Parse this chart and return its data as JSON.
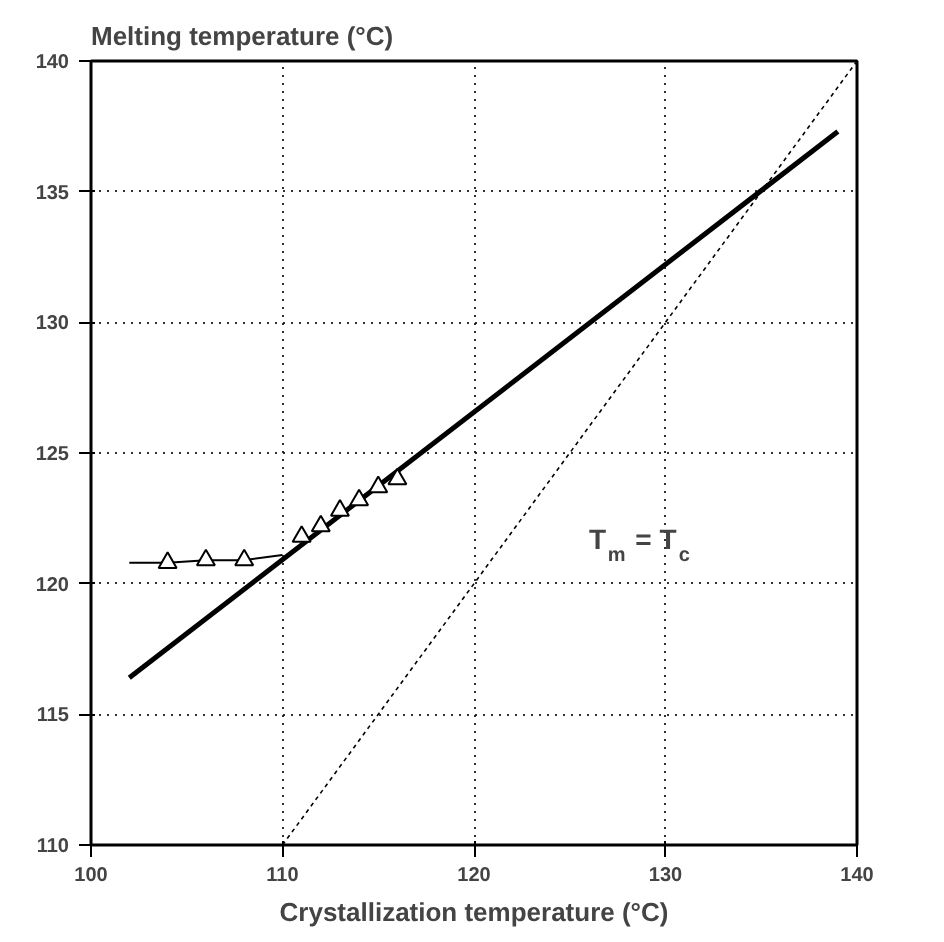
{
  "chart_data": {
    "type": "line",
    "ylabel": "Melting temperature (°C)",
    "xlabel": "Crystallization temperature (°C)",
    "xlim": [
      100,
      140
    ],
    "ylim": [
      110,
      140
    ],
    "xticks": [
      100,
      110,
      120,
      130,
      140
    ],
    "yticks": [
      110,
      115,
      120,
      125,
      130,
      135,
      140
    ],
    "grid": true,
    "series": [
      {
        "color": "#000000",
        "x": [
          102,
          139
        ],
        "values": [
          116.4,
          137.3
        ]
      },
      {
        "color": "#000000",
        "x": [
          110,
          140
        ],
        "values": [
          110,
          140
        ],
        "line_style": "dotted"
      },
      {
        "color": "#000000",
        "x": [
          102,
          104,
          106,
          108,
          110
        ],
        "values": [
          120.8,
          120.8,
          120.9,
          120.9,
          121.1
        ]
      },
      {
        "type": "scatter",
        "color": "#000000",
        "marker": "triangle",
        "x": [
          104,
          106,
          108,
          111,
          112,
          113,
          114,
          115,
          116
        ],
        "values": [
          120.8,
          120.9,
          120.9,
          121.8,
          122.2,
          122.8,
          123.2,
          123.7,
          124.0
        ]
      }
    ],
    "annotations": [
      "T$_{m}$ = T$_{c}$"
    ]
  }
}
